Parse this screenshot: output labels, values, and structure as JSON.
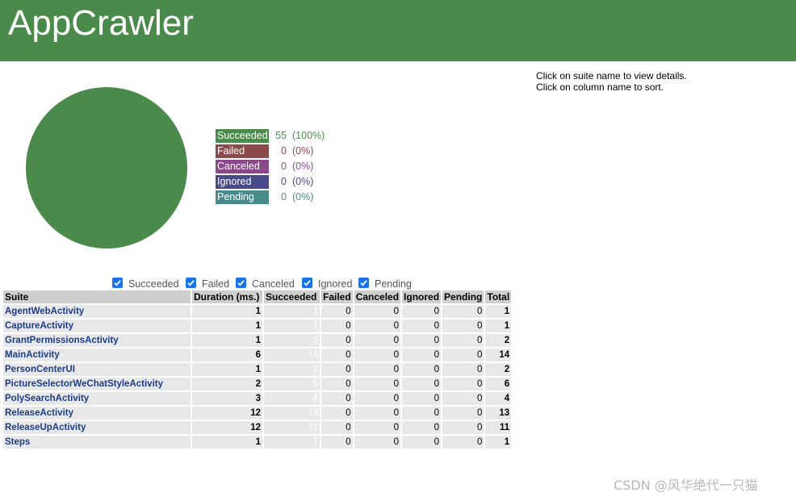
{
  "header": {
    "title": "AppCrawler"
  },
  "instructions": {
    "line1": "Click on suite name to view details.",
    "line2": "Click on column name to sort."
  },
  "colors": {
    "succeeded": "#4a8a4a",
    "failed": "#8a4a4a",
    "canceled": "#8a4a8a",
    "ignored": "#4a4a8a",
    "pending": "#4a8a8a"
  },
  "chart_data": {
    "type": "pie",
    "categories": [
      "Succeeded",
      "Failed",
      "Canceled",
      "Ignored",
      "Pending"
    ],
    "values": [
      55,
      0,
      0,
      0,
      0
    ],
    "percents": [
      "(100%)",
      "(0%)",
      "(0%)",
      "(0%)",
      "(0%)"
    ]
  },
  "legend": [
    {
      "label": "Succeeded",
      "count": "55",
      "pct": "(100%)"
    },
    {
      "label": "Failed",
      "count": "0",
      "pct": "(0%)"
    },
    {
      "label": "Canceled",
      "count": "0",
      "pct": "(0%)"
    },
    {
      "label": "Ignored",
      "count": "0",
      "pct": "(0%)"
    },
    {
      "label": "Pending",
      "count": "0",
      "pct": "(0%)"
    }
  ],
  "filters": [
    {
      "label": "Succeeded",
      "checked": true
    },
    {
      "label": "Failed",
      "checked": true
    },
    {
      "label": "Canceled",
      "checked": true
    },
    {
      "label": "Ignored",
      "checked": true
    },
    {
      "label": "Pending",
      "checked": true
    }
  ],
  "table": {
    "headers": [
      "Suite",
      "Duration (ms.)",
      "Succeeded",
      "Failed",
      "Canceled",
      "Ignored",
      "Pending",
      "Total"
    ],
    "rows": [
      {
        "suite": "AgentWebActivity",
        "duration": "1",
        "succeeded": "1",
        "failed": "0",
        "canceled": "0",
        "ignored": "0",
        "pending": "0",
        "total": "1"
      },
      {
        "suite": "CaptureActivity",
        "duration": "1",
        "succeeded": "1",
        "failed": "0",
        "canceled": "0",
        "ignored": "0",
        "pending": "0",
        "total": "1"
      },
      {
        "suite": "GrantPermissionsActivity",
        "duration": "1",
        "succeeded": "2",
        "failed": "0",
        "canceled": "0",
        "ignored": "0",
        "pending": "0",
        "total": "2"
      },
      {
        "suite": "MainActivity",
        "duration": "6",
        "succeeded": "14",
        "failed": "0",
        "canceled": "0",
        "ignored": "0",
        "pending": "0",
        "total": "14"
      },
      {
        "suite": "PersonCenterUI",
        "duration": "1",
        "succeeded": "2",
        "failed": "0",
        "canceled": "0",
        "ignored": "0",
        "pending": "0",
        "total": "2"
      },
      {
        "suite": "PictureSelectorWeChatStyleActivity",
        "duration": "2",
        "succeeded": "6",
        "failed": "0",
        "canceled": "0",
        "ignored": "0",
        "pending": "0",
        "total": "6"
      },
      {
        "suite": "PolySearchActivity",
        "duration": "3",
        "succeeded": "4",
        "failed": "0",
        "canceled": "0",
        "ignored": "0",
        "pending": "0",
        "total": "4"
      },
      {
        "suite": "ReleaseActivity",
        "duration": "12",
        "succeeded": "13",
        "failed": "0",
        "canceled": "0",
        "ignored": "0",
        "pending": "0",
        "total": "13"
      },
      {
        "suite": "ReleaseUpActivity",
        "duration": "12",
        "succeeded": "11",
        "failed": "0",
        "canceled": "0",
        "ignored": "0",
        "pending": "0",
        "total": "11"
      },
      {
        "suite": "Steps",
        "duration": "1",
        "succeeded": "1",
        "failed": "0",
        "canceled": "0",
        "ignored": "0",
        "pending": "0",
        "total": "1"
      }
    ]
  },
  "watermark": "CSDN @风华绝代一只猫"
}
